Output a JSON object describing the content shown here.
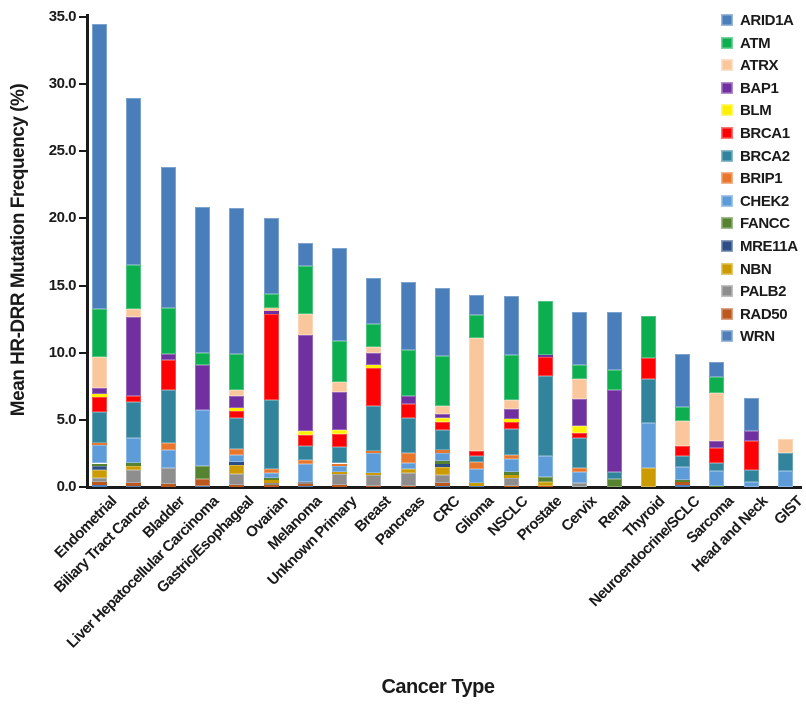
{
  "figure": {
    "y_title": "Mean HR-DRR Mutation Frequency (%)",
    "x_title": "Cancer Type"
  },
  "chart_data": {
    "type": "bar",
    "stacked": true,
    "title": "",
    "xlabel": "Cancer Type",
    "ylabel": "Mean HR-DRR Mutation Frequency (%)",
    "ylim": [
      0,
      35
    ],
    "yticks": [
      0,
      5,
      10,
      15,
      20,
      25,
      30,
      35
    ],
    "ytick_labels": [
      "0.0",
      "5.0",
      "10.0",
      "15.0",
      "20.0",
      "25.0",
      "30.0",
      "35.0"
    ],
    "grid": false,
    "legend_position": "upper-right",
    "stack_note": "legend order top-to-bottom equals segment order top-to-bottom; WRN is the bottom segment, ARID1A the top",
    "categories": [
      "Endometrial",
      "Biliary Tract Cancer",
      "Bladder",
      "Liver Hepatocellular Carcinoma",
      "Gastric/Esophageal",
      "Ovarian",
      "Melanoma",
      "Unknown Primary",
      "Breast",
      "Pancreas",
      "CRC",
      "Glioma",
      "NSCLC",
      "Prostate",
      "Cervix",
      "Renal",
      "Thyroid",
      "Neuroendocrine/SCLC",
      "Sarcoma",
      "Head and Neck",
      "GIST"
    ],
    "series": [
      {
        "name": "ARID1A",
        "color": "#4A7EBB",
        "values": [
          21.2,
          12.4,
          10.5,
          10.9,
          10.9,
          5.6,
          1.7,
          6.9,
          3.45,
          5.1,
          5.1,
          1.5,
          4.35,
          0,
          4.0,
          4.3,
          0,
          3.95,
          1.1,
          2.4,
          0
        ]
      },
      {
        "name": "ATM",
        "color": "#0CAE4F",
        "values": [
          3.6,
          3.3,
          3.4,
          0.9,
          2.7,
          1.1,
          3.6,
          3.1,
          1.7,
          3.4,
          3.7,
          1.7,
          3.35,
          4.0,
          1.0,
          1.5,
          3.1,
          1.0,
          1.2,
          0,
          0
        ]
      },
      {
        "name": "ATRX",
        "color": "#FAC69B",
        "values": [
          2.3,
          0.6,
          0,
          0,
          0.45,
          0.2,
          1.5,
          0.75,
          0.5,
          0,
          0.6,
          8.4,
          0.7,
          0,
          1.5,
          0,
          0,
          1.9,
          3.6,
          0,
          1.05
        ]
      },
      {
        "name": "BAP1",
        "color": "#7030A0",
        "values": [
          0.4,
          5.9,
          0.45,
          3.3,
          0.9,
          0.2,
          7.2,
          2.8,
          0.9,
          0.65,
          0.3,
          0,
          0.75,
          0.2,
          2.0,
          6.1,
          0,
          0,
          0.5,
          0.75,
          0
        ]
      },
      {
        "name": "BLM",
        "color": "#FFF000",
        "values": [
          0.25,
          0,
          0,
          0,
          0.2,
          0,
          0.3,
          0.3,
          0.2,
          0,
          0.3,
          0,
          0.2,
          0,
          0.5,
          0,
          0,
          0,
          0,
          0,
          0
        ]
      },
      {
        "name": "BRCA1",
        "color": "#FC0204",
        "values": [
          1.1,
          0.4,
          2.2,
          0,
          0.5,
          6.4,
          0.8,
          1.0,
          2.85,
          1.0,
          0.6,
          0.4,
          0.5,
          1.35,
          0.4,
          0,
          1.55,
          0.75,
          1.1,
          2.15,
          0
        ]
      },
      {
        "name": "BRCA2",
        "color": "#31849B",
        "values": [
          2.3,
          2.7,
          4.0,
          0,
          2.3,
          5.15,
          1.05,
          1.2,
          3.3,
          2.6,
          1.5,
          0.45,
          2.0,
          6.0,
          2.2,
          0.5,
          3.3,
          0.8,
          0.6,
          0.95,
          1.35
        ]
      },
      {
        "name": "BRIP1",
        "color": "#E8762D",
        "values": [
          0.2,
          0,
          0.5,
          0,
          0.5,
          0.3,
          0.3,
          0.2,
          0.2,
          0.75,
          0.2,
          0.5,
          0.3,
          0,
          0.35,
          0,
          0,
          0,
          0,
          0,
          0
        ]
      },
      {
        "name": "CHEK2",
        "color": "#5D9CD9",
        "values": [
          1.35,
          1.85,
          1.3,
          4.2,
          0.5,
          0.4,
          1.3,
          0.4,
          1.45,
          0.45,
          0.65,
          1.05,
          0.95,
          1.55,
          0.8,
          0,
          3.35,
          0.95,
          1.1,
          0.35,
          1.2
        ]
      },
      {
        "name": "FANCC",
        "color": "#56832F",
        "values": [
          0.15,
          0.2,
          0,
          0.95,
          0,
          0.15,
          0,
          0,
          0,
          0,
          0.2,
          0,
          0.2,
          0.35,
          0,
          0.6,
          0,
          0.2,
          0.1,
          0,
          0
        ]
      },
      {
        "name": "MRE11A",
        "color": "#2C4D85",
        "values": [
          0.3,
          0,
          0,
          0,
          0.2,
          0,
          0,
          0,
          0,
          0,
          0.2,
          0,
          0,
          0,
          0,
          0,
          0,
          0,
          0,
          0,
          0
        ]
      },
      {
        "name": "NBN",
        "color": "#CB9B01",
        "values": [
          0.6,
          0.35,
          0,
          0,
          0.7,
          0.2,
          0,
          0.2,
          0.15,
          0.3,
          0.6,
          0.2,
          0.2,
          0.3,
          0,
          0,
          1.4,
          0,
          0,
          0,
          0
        ]
      },
      {
        "name": "PALB2",
        "color": "#8E8E8E",
        "values": [
          0.35,
          0.95,
          1.25,
          0,
          0.8,
          0.15,
          0.2,
          0.8,
          0.8,
          0.95,
          0.6,
          0,
          0.6,
          0,
          0.3,
          0,
          0,
          0,
          0,
          0,
          0
        ]
      },
      {
        "name": "RAD50",
        "color": "#BC571E",
        "values": [
          0.2,
          0.2,
          0.2,
          0.5,
          0.15,
          0.15,
          0.1,
          0.15,
          0.1,
          0.1,
          0.2,
          0,
          0.1,
          0.1,
          0,
          0,
          0,
          0.2,
          0,
          0,
          0
        ]
      },
      {
        "name": "WRN",
        "color": "#4E7FBA",
        "values": [
          0.15,
          0.1,
          0,
          0.1,
          0,
          0,
          0.1,
          0,
          0,
          0,
          0.1,
          0.1,
          0,
          0,
          0,
          0,
          0,
          0.15,
          0,
          0,
          0
        ]
      }
    ]
  }
}
